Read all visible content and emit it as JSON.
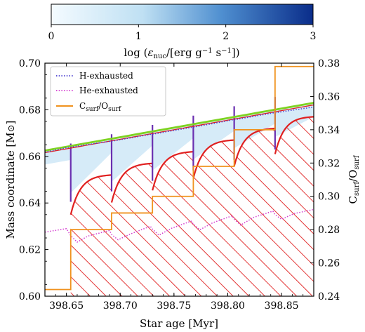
{
  "chart_data": {
    "type": "line",
    "colorbar": {
      "label": "log (εnuc/[erg g⁻¹ s⁻¹])",
      "ticks": [
        "0",
        "1",
        "2",
        "3"
      ],
      "range": [
        0,
        3
      ],
      "colors": {
        "low": "#f4fbff",
        "mid": "#bcdff3",
        "high": "#0a2d8a"
      }
    },
    "xlabel": "Star age [Myr]",
    "ylabel": "Mass coordinate [M⊙]",
    "ylabel_right": "Csurf/Osurf",
    "xlim": [
      398.63,
      398.88
    ],
    "ylim": [
      0.6,
      0.7
    ],
    "ylim_right": [
      0.24,
      0.38
    ],
    "xticks": [
      "398.65",
      "398.70",
      "398.75",
      "398.80",
      "398.85"
    ],
    "xtick_values": [
      398.65,
      398.7,
      398.75,
      398.8,
      398.85
    ],
    "yticks": [
      "0.60",
      "0.62",
      "0.64",
      "0.66",
      "0.68",
      "0.70"
    ],
    "ytick_values": [
      0.6,
      0.62,
      0.64,
      0.66,
      0.68,
      0.7
    ],
    "yticks_right": [
      "0.24",
      "0.26",
      "0.28",
      "0.30",
      "0.32",
      "0.34",
      "0.36",
      "0.38"
    ],
    "ytick_values_right": [
      0.24,
      0.26,
      0.28,
      0.3,
      0.32,
      0.34,
      0.36,
      0.38
    ],
    "legend": {
      "placement": "top-left",
      "entries": [
        "H-exhausted",
        "He-exhausted",
        "Csurf/Osurf"
      ]
    },
    "colors": {
      "h_exhausted": "#4a3fd0",
      "he_exhausted": "#d43bd0",
      "c_o": "#f0921e",
      "convective": "#e02020",
      "envelope_top": "#7ed321",
      "burning": "#cfe7f7"
    },
    "pulses_x": [
      398.654,
      398.692,
      398.73,
      398.768,
      398.806,
      398.844
    ],
    "series": [
      {
        "name": "H-exhausted",
        "x": [
          398.63,
          398.653,
          398.654,
          398.691,
          398.692,
          398.729,
          398.73,
          398.767,
          398.768,
          398.805,
          398.806,
          398.843,
          398.844,
          398.88
        ],
        "y": [
          0.6618,
          0.664,
          0.664,
          0.6665,
          0.6665,
          0.6695,
          0.6695,
          0.6725,
          0.6725,
          0.6757,
          0.6757,
          0.6787,
          0.6787,
          0.6812
        ]
      },
      {
        "name": "He-exhausted",
        "x": [
          398.63,
          398.65,
          398.654,
          398.66,
          398.67,
          398.69,
          398.692,
          398.698,
          398.71,
          398.728,
          398.73,
          398.736,
          398.748,
          398.766,
          398.768,
          398.774,
          398.786,
          398.804,
          398.806,
          398.812,
          398.824,
          398.842,
          398.844,
          398.85,
          398.862,
          398.88
        ],
        "y": [
          0.6275,
          0.629,
          0.626,
          0.6232,
          0.6258,
          0.6282,
          0.6265,
          0.6242,
          0.6268,
          0.63,
          0.6288,
          0.6262,
          0.6292,
          0.6322,
          0.631,
          0.6285,
          0.6315,
          0.6345,
          0.633,
          0.6305,
          0.6338,
          0.6365,
          0.635,
          0.633,
          0.6355,
          0.6372
        ]
      },
      {
        "name": "Csurf/Osurf",
        "x": [
          398.63,
          398.654,
          398.654,
          398.692,
          398.692,
          398.73,
          398.73,
          398.768,
          398.768,
          398.806,
          398.806,
          398.844,
          398.844,
          398.88
        ],
        "y": [
          0.244,
          0.244,
          0.28,
          0.28,
          0.29,
          0.29,
          0.3,
          0.3,
          0.318,
          0.318,
          0.34,
          0.34,
          0.378,
          0.378
        ]
      }
    ]
  }
}
